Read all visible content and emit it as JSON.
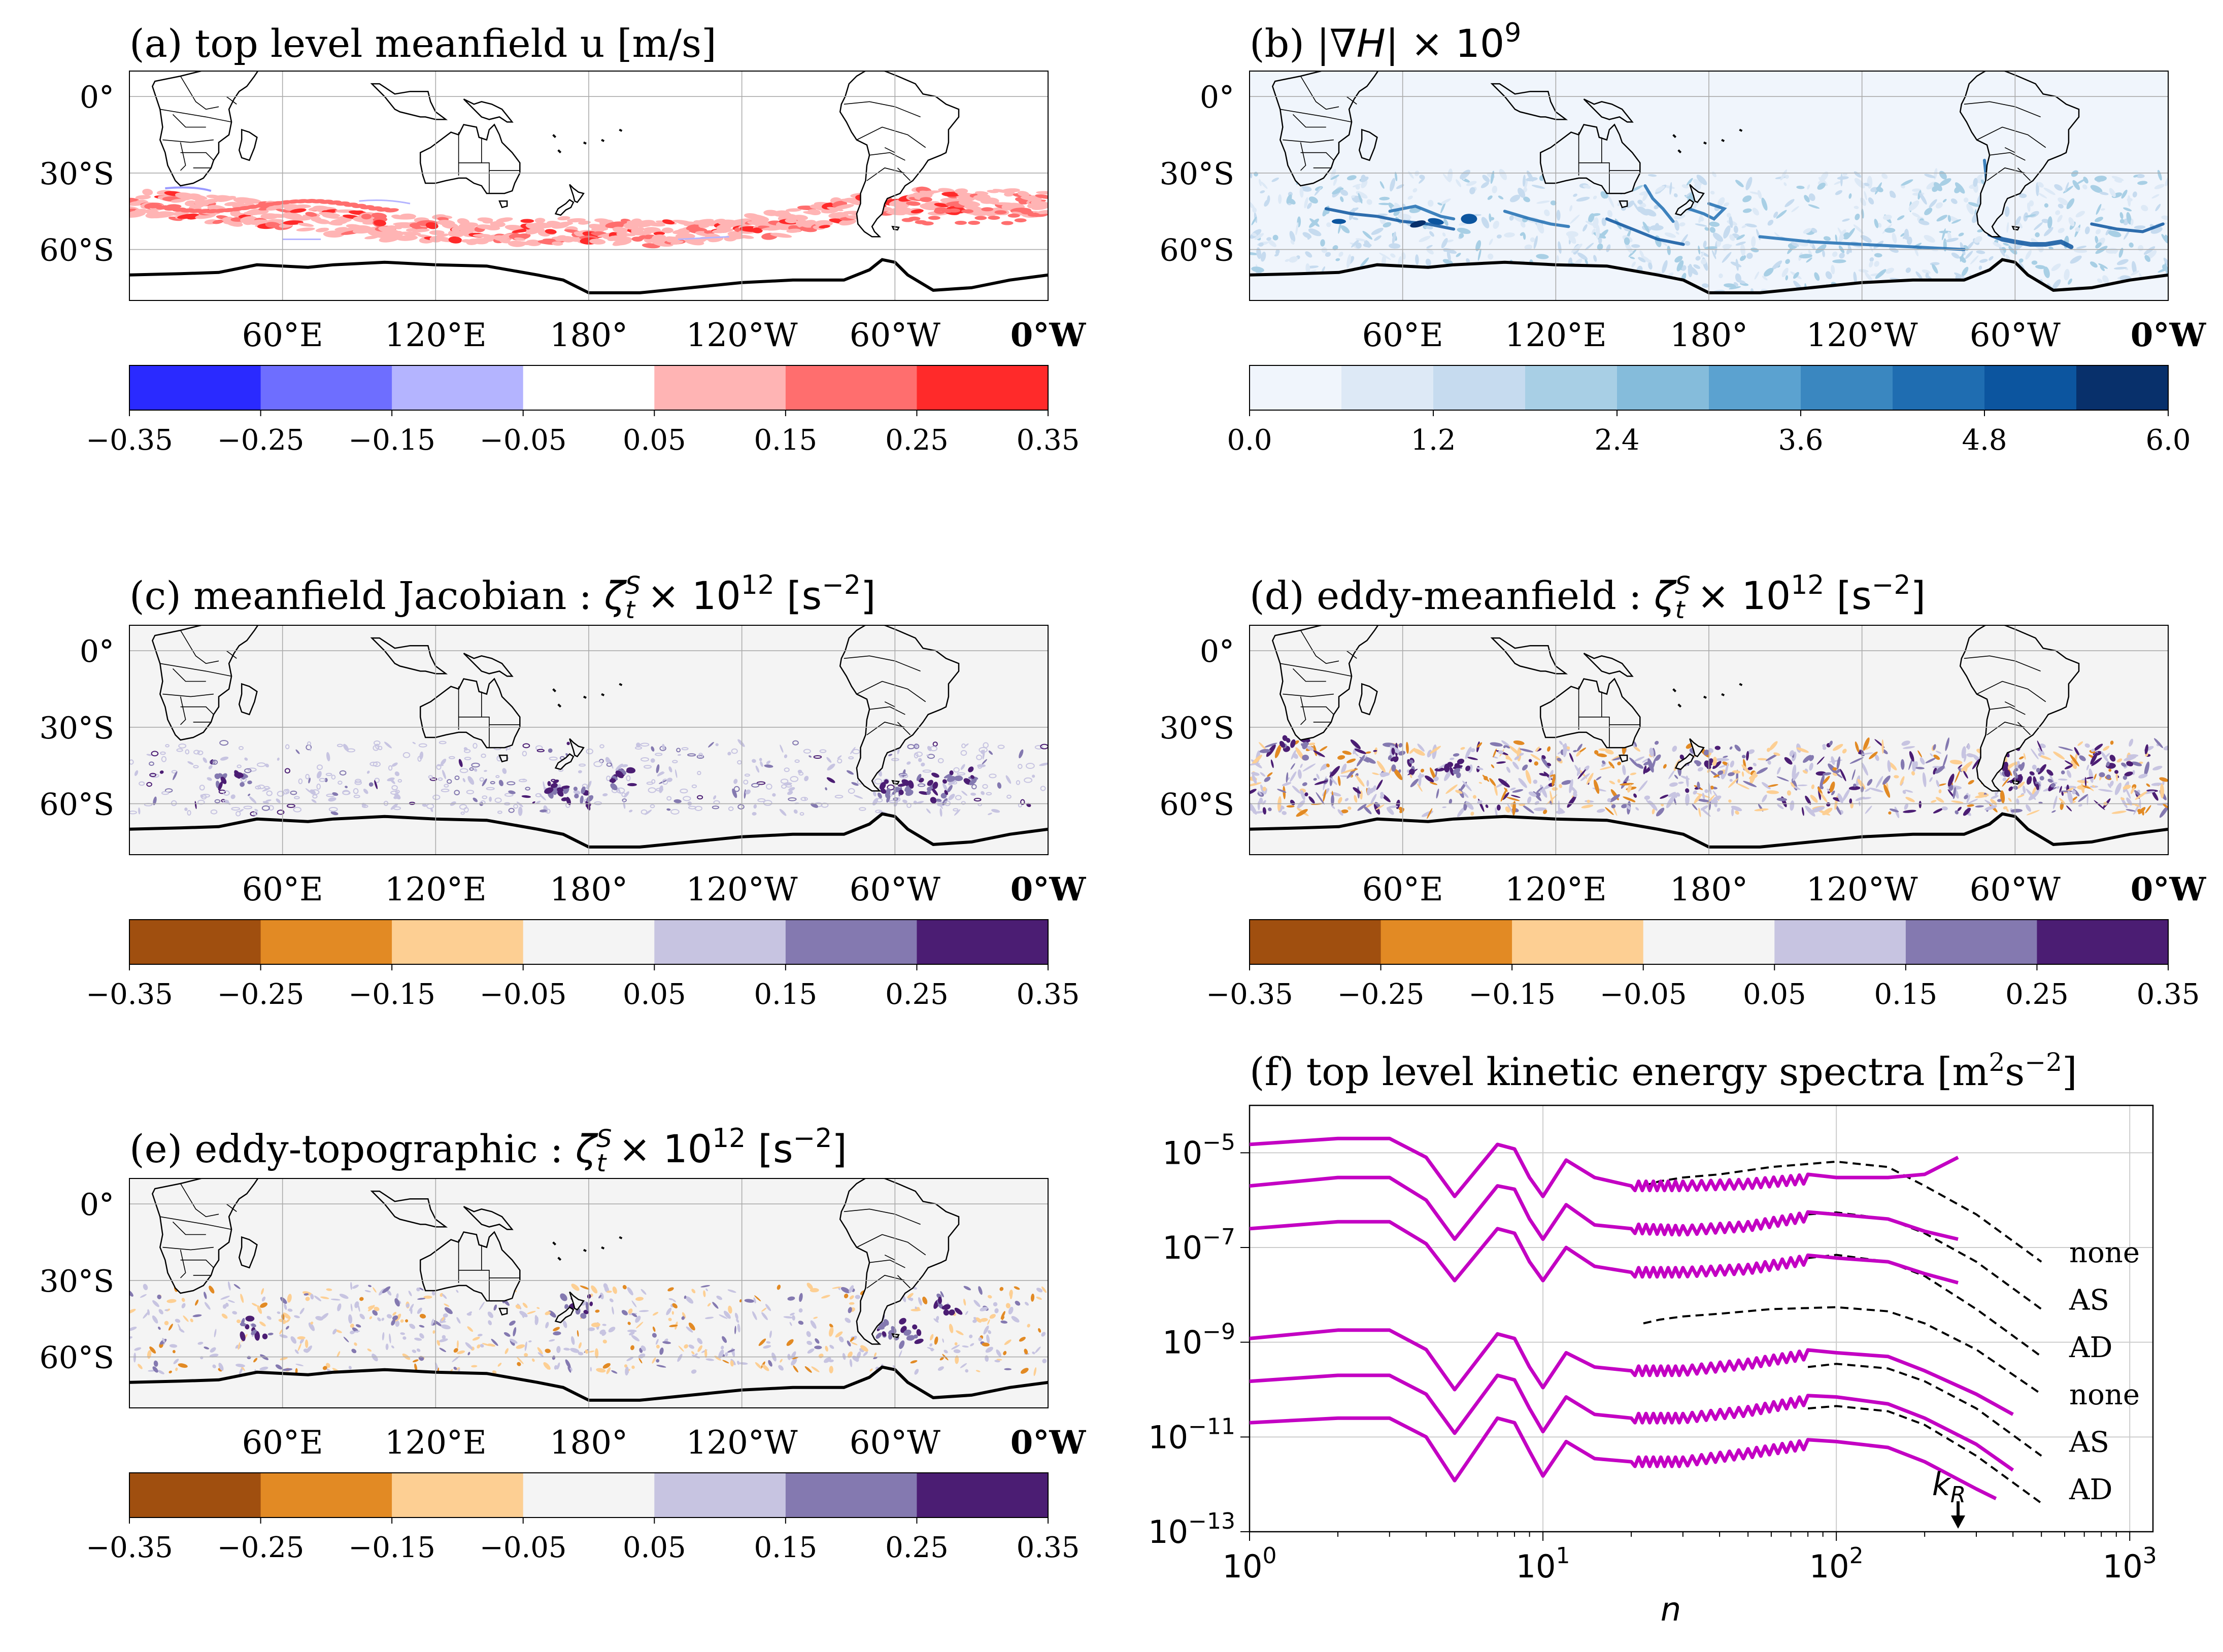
{
  "figure": {
    "panels": [
      {
        "id": "a",
        "title": "(a) top level meanfield u [m/s]",
        "lat_labels": [
          "0°",
          "30°S",
          "60°S"
        ],
        "lon_labels": [
          "60°E",
          "120°E",
          "180°",
          "120°W",
          "60°W",
          "0°W"
        ],
        "colorbar": {
          "ticks": [
            "−0.35",
            "−0.25",
            "−0.15",
            "−0.05",
            "0.05",
            "0.15",
            "0.25",
            "0.35"
          ],
          "colors": [
            "#2a2aff",
            "#6e6eff",
            "#b4b4ff",
            "#ffffff",
            "#ffb4b4",
            "#ff6e6e",
            "#ff2a2a"
          ]
        },
        "field": "u"
      },
      {
        "id": "b",
        "title_prefix": "(b) |∇",
        "title_var": "H",
        "title_mid": "| × 10",
        "title_sup": "9",
        "lat_labels": [
          "0°",
          "30°S",
          "60°S"
        ],
        "lon_labels": [
          "60°E",
          "120°E",
          "180°",
          "120°W",
          "60°W",
          "0°W"
        ],
        "colorbar": {
          "ticks": [
            "0.0",
            "1.2",
            "2.4",
            "3.6",
            "4.8",
            "6.0"
          ],
          "colors": [
            "#f0f5fc",
            "#dde9f6",
            "#c6dbef",
            "#a8cfe5",
            "#85bcdb",
            "#5ba2d0",
            "#3a87c0",
            "#1f6db1",
            "#0c559f",
            "#08306b"
          ]
        },
        "field": "gradH"
      },
      {
        "id": "c",
        "title": "(c) meanfield Jacobian : ",
        "title_units": " × 10",
        "title_exp": "12",
        "title_tail": " [s",
        "title_tail_sup": "−2",
        "lat_labels": [
          "0°",
          "30°S",
          "60°S"
        ],
        "lon_labels": [
          "60°E",
          "120°E",
          "180°",
          "120°W",
          "60°W",
          "0°W"
        ],
        "colorbar": {
          "ticks": [
            "−0.35",
            "−0.25",
            "−0.15",
            "−0.05",
            "0.05",
            "0.15",
            "0.25",
            "0.35"
          ],
          "colors": [
            "#a04f0f",
            "#e28a24",
            "#fdcf93",
            "#f4f4f4",
            "#c7c4e1",
            "#8479b0",
            "#4b1d73"
          ]
        },
        "field": "jac"
      },
      {
        "id": "d",
        "title": "(d) eddy-meanfield : ",
        "title_units": " × 10",
        "title_exp": "12",
        "title_tail": " [s",
        "title_tail_sup": "−2",
        "lat_labels": [
          "0°",
          "30°S",
          "60°S"
        ],
        "lon_labels": [
          "60°E",
          "120°E",
          "180°",
          "120°W",
          "60°W",
          "0°W"
        ],
        "colorbar": {
          "ticks": [
            "−0.35",
            "−0.25",
            "−0.15",
            "−0.05",
            "0.05",
            "0.15",
            "0.25",
            "0.35"
          ],
          "colors": [
            "#a04f0f",
            "#e28a24",
            "#fdcf93",
            "#f4f4f4",
            "#c7c4e1",
            "#8479b0",
            "#4b1d73"
          ]
        },
        "field": "eddy"
      },
      {
        "id": "e",
        "title": "(e) eddy-topographic : ",
        "title_units": " × 10",
        "title_exp": "12",
        "title_tail": " [s",
        "title_tail_sup": "−2",
        "lat_labels": [
          "0°",
          "30°S",
          "60°S"
        ],
        "lon_labels": [
          "60°E",
          "120°E",
          "180°",
          "120°W",
          "60°W",
          "0°W"
        ],
        "colorbar": {
          "ticks": [
            "−0.35",
            "−0.25",
            "−0.15",
            "−0.05",
            "0.05",
            "0.15",
            "0.25",
            "0.35"
          ],
          "colors": [
            "#a04f0f",
            "#e28a24",
            "#fdcf93",
            "#f4f4f4",
            "#c7c4e1",
            "#8479b0",
            "#4b1d73"
          ]
        },
        "field": "topo"
      }
    ],
    "zeta_symbol": "ζ",
    "zeta_sub": "t",
    "zeta_sup": "S"
  },
  "chart_data": {
    "type": "line",
    "title": "(f) top level kinetic energy spectra [m",
    "title_sup1": "2",
    "title_mid": "s",
    "title_sup2": "−2",
    "title_end": "]",
    "xlabel": "n",
    "x_scale": "log",
    "y_scale": "log",
    "xlim": [
      1,
      1200
    ],
    "ylim": [
      1e-13,
      0.0001
    ],
    "x_tick_labels": [
      {
        "base": "10",
        "exp": "0",
        "value": 1
      },
      {
        "base": "10",
        "exp": "1",
        "value": 10
      },
      {
        "base": "10",
        "exp": "2",
        "value": 100
      },
      {
        "base": "10",
        "exp": "3",
        "value": 1000
      }
    ],
    "y_tick_labels": [
      {
        "base": "10",
        "exp": "−5",
        "value": 1e-05
      },
      {
        "base": "10",
        "exp": "−7",
        "value": 1e-07
      },
      {
        "base": "10",
        "exp": "−9",
        "value": 1e-09
      },
      {
        "base": "10",
        "exp": "−11",
        "value": 1e-11
      },
      {
        "base": "10",
        "exp": "−13",
        "value": 1e-13
      }
    ],
    "grid": true,
    "annotation": {
      "text": "k",
      "sub": "R",
      "n": 260
    },
    "series_colors": {
      "model": "#c300c3",
      "reference": "#000000"
    },
    "series_labels": [
      {
        "text": "none",
        "value": 4e-08
      },
      {
        "text": "AS",
        "value": 4e-09
      },
      {
        "text": "AD",
        "value": 4e-10
      },
      {
        "text": "none",
        "value": 4e-11
      },
      {
        "text": "AS",
        "value": 4e-12
      },
      {
        "text": "AD",
        "value": 4e-13
      }
    ],
    "series": [
      {
        "style": "dashed",
        "x": [
          22,
          25,
          30,
          40,
          60,
          100,
          150,
          200,
          300,
          500
        ],
        "y": [
          2e-06,
          2.5e-06,
          3e-06,
          3.5e-06,
          5e-06,
          6.5e-06,
          5e-06,
          2e-06,
          5e-07,
          5e-08
        ]
      },
      {
        "style": "solid",
        "x": [
          1,
          2,
          3,
          4,
          5,
          7,
          8,
          9,
          10,
          12,
          15,
          20,
          30,
          50,
          80,
          100,
          150,
          200,
          260
        ],
        "y": [
          1.5e-05,
          2e-05,
          2e-05,
          8e-06,
          1.2e-06,
          1.5e-05,
          1.2e-05,
          3e-06,
          1.2e-06,
          7e-06,
          3e-06,
          2e-06,
          2e-06,
          2.2e-06,
          2.8e-06,
          3e-06,
          3e-06,
          3.5e-06,
          8e-06
        ]
      },
      {
        "style": "dashed",
        "x": [
          80,
          100,
          150,
          200,
          300,
          500
        ],
        "y": [
          5e-07,
          5.5e-07,
          4e-07,
          2e-07,
          5e-08,
          5e-09
        ]
      },
      {
        "style": "solid",
        "x": [
          1,
          2,
          3,
          4,
          5,
          7,
          8,
          9,
          10,
          12,
          15,
          20,
          30,
          50,
          80,
          100,
          150,
          200,
          260
        ],
        "y": [
          2e-06,
          3e-06,
          3e-06,
          1e-06,
          1.5e-07,
          2e-06,
          1.7e-06,
          4e-07,
          1.5e-07,
          8e-07,
          3e-07,
          2.5e-07,
          2.3e-07,
          2.8e-07,
          4.5e-07,
          5e-07,
          4e-07,
          2.2e-07,
          1.5e-07
        ]
      },
      {
        "style": "dashed",
        "x": [
          80,
          100,
          150,
          200,
          300,
          500
        ],
        "y": [
          6e-08,
          7e-08,
          5e-08,
          2.5e-08,
          5e-09,
          5e-10
        ]
      },
      {
        "style": "solid",
        "x": [
          1,
          2,
          3,
          4,
          5,
          7,
          8,
          9,
          10,
          12,
          15,
          20,
          30,
          50,
          80,
          100,
          150,
          200,
          260
        ],
        "y": [
          2.5e-07,
          3.5e-07,
          3.5e-07,
          1.2e-07,
          2e-08,
          2.5e-07,
          2e-07,
          5e-08,
          2e-08,
          1e-07,
          4e-08,
          3e-08,
          3e-08,
          3.5e-08,
          5.5e-08,
          6e-08,
          5e-08,
          2.8e-08,
          1.8e-08
        ]
      },
      {
        "style": "dashed",
        "x": [
          22,
          25,
          30,
          40,
          60,
          100,
          150,
          200,
          300,
          500
        ],
        "y": [
          2.5e-09,
          3e-09,
          3.5e-09,
          4e-09,
          5e-09,
          5.5e-09,
          4.5e-09,
          2.5e-09,
          7e-10,
          8e-11
        ]
      },
      {
        "style": "solid",
        "x": [
          1,
          2,
          3,
          4,
          5,
          7,
          8,
          9,
          10,
          12,
          15,
          20,
          30,
          50,
          80,
          100,
          150,
          200,
          300,
          400
        ],
        "y": [
          1.2e-09,
          1.8e-09,
          1.8e-09,
          7e-10,
          1e-10,
          1.5e-09,
          1.2e-09,
          3e-10,
          1.1e-10,
          6e-10,
          3e-10,
          2.5e-10,
          2.5e-10,
          3.5e-10,
          5.5e-10,
          6e-10,
          5e-10,
          2.5e-10,
          8e-11,
          3e-11
        ]
      },
      {
        "style": "dashed",
        "x": [
          80,
          100,
          150,
          200,
          300,
          500
        ],
        "y": [
          3e-10,
          3.5e-10,
          2.8e-10,
          1.5e-10,
          4e-11,
          4e-12
        ]
      },
      {
        "style": "solid",
        "x": [
          1,
          2,
          3,
          4,
          5,
          7,
          8,
          9,
          10,
          12,
          15,
          20,
          30,
          50,
          80,
          100,
          150,
          200,
          300,
          400
        ],
        "y": [
          1.5e-10,
          2e-10,
          2e-10,
          8e-11,
          1.2e-11,
          2e-10,
          1.6e-10,
          4e-11,
          1.3e-11,
          7e-11,
          3e-11,
          2.5e-11,
          2.5e-11,
          3.5e-11,
          6e-11,
          7e-11,
          5e-11,
          2.5e-11,
          7e-12,
          2e-12
        ]
      },
      {
        "style": "dashed",
        "x": [
          80,
          100,
          150,
          200,
          300,
          500
        ],
        "y": [
          4e-11,
          4.5e-11,
          3.5e-11,
          1.8e-11,
          4e-12,
          4e-13
        ]
      },
      {
        "style": "solid",
        "x": [
          1,
          2,
          3,
          4,
          5,
          7,
          8,
          9,
          10,
          12,
          15,
          20,
          30,
          50,
          80,
          100,
          150,
          200,
          300,
          350
        ],
        "y": [
          2e-11,
          2.5e-11,
          2.5e-11,
          1e-11,
          1.2e-12,
          2.5e-11,
          2e-11,
          5e-12,
          1.5e-12,
          8e-12,
          3.5e-12,
          3e-12,
          3e-12,
          4.5e-12,
          7e-12,
          8e-12,
          6e-12,
          3e-12,
          8e-13,
          5e-13
        ]
      }
    ]
  }
}
